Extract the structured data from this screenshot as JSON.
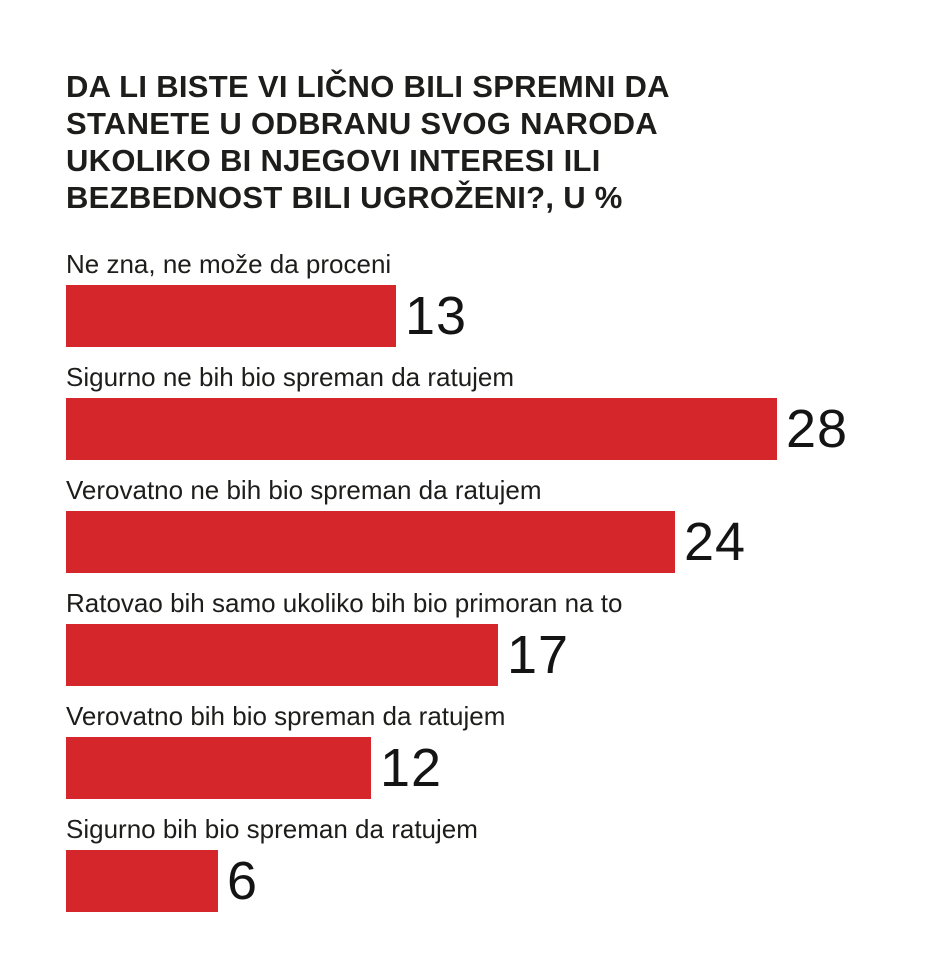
{
  "page": {
    "background_color": "#ffffff",
    "text_color": "#1d1d1b",
    "accent_color": "#d4262b"
  },
  "chart_data": {
    "type": "bar",
    "orientation": "horizontal",
    "title": "DA LI BISTE VI LIČNO BILI SPREMNI DA STANETE U ODBRANU SVOG NARODA UKOLIKO BI NJEGOVI INTERESI ILI BEZBEDNOST BILI UGROŽENI?, U %",
    "title_lines": [
      "DA LI BISTE VI LIČNO BILI SPREMNI DA",
      "STANETE U ODBRANU SVOG NARODA",
      "UKOLIKO BI NJEGOVI INTERESI ILI",
      "BEZBEDNOST BILI UGROŽENI?, U %"
    ],
    "unit": "%",
    "categories": [
      "Ne zna, ne može da proceni",
      "Sigurno ne bih bio spreman da ratujem",
      "Verovatno ne bih bio spreman da ratujem",
      "Ratovao bih samo ukoliko bih bio primoran na to",
      "Verovatno bih bio spreman da ratujem",
      "Sigurno bih bio spreman da ratujem"
    ],
    "values": [
      13,
      28,
      24,
      17,
      12,
      6
    ],
    "xlim": [
      0,
      28
    ],
    "bar_color": "#d4262b",
    "grid": false,
    "legend": false,
    "value_label_position": "right-of-bar"
  }
}
